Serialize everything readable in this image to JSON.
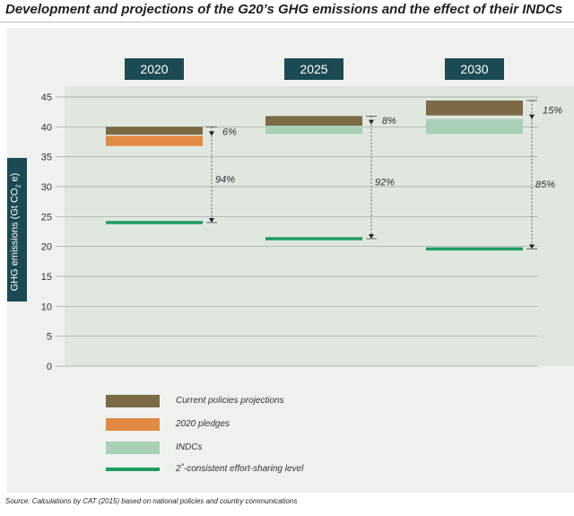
{
  "title": "Development and projections of the G20’s GHG emissions and the effect of their INDCs",
  "source": "Source: Calculations by CAT (2015) based on national policies and country communications",
  "ylabel": {
    "main": "GHG emissions (Gt CO",
    "sub": "2",
    "tail": " e)"
  },
  "colors": {
    "current_policies": "#7c6a46",
    "pledges_2020": "#e28a43",
    "indcs": "#a9d0b7",
    "two_degree": "#1e9b63",
    "year_box": "#1b4a52"
  },
  "chart_data": {
    "type": "bar",
    "categories": [
      "2020",
      "2025",
      "2030"
    ],
    "ylim": [
      0,
      45
    ],
    "yticks": [
      "0",
      "5",
      "10",
      "15",
      "20",
      "25",
      "30",
      "35",
      "40",
      "45"
    ],
    "grid": true,
    "ranges": [
      {
        "year": "2020",
        "current_policies": [
          38.7,
          40.0
        ],
        "pledges_2020": [
          36.8,
          38.5
        ],
        "two_degree": 24.0,
        "gap_top_label": "6%",
        "gap_bottom_label": "94%"
      },
      {
        "year": "2025",
        "current_policies": [
          40.2,
          41.8
        ],
        "indcs": [
          38.8,
          40.4
        ],
        "two_degree": 21.3,
        "gap_top_label": "8%",
        "gap_bottom_label": "92%"
      },
      {
        "year": "2030",
        "current_policies": [
          41.9,
          44.4
        ],
        "indcs": [
          38.8,
          41.3
        ],
        "two_degree": 19.6,
        "gap_top_label": "15%",
        "gap_bottom_label": "85%"
      }
    ],
    "legend": [
      {
        "key": "current_policies",
        "label": "Current policies projections"
      },
      {
        "key": "pledges_2020",
        "label": "2020 pledges"
      },
      {
        "key": "indcs",
        "label": "INDCs"
      },
      {
        "key": "two_degree",
        "label": "2˚-consistent effort-sharing level"
      }
    ]
  }
}
